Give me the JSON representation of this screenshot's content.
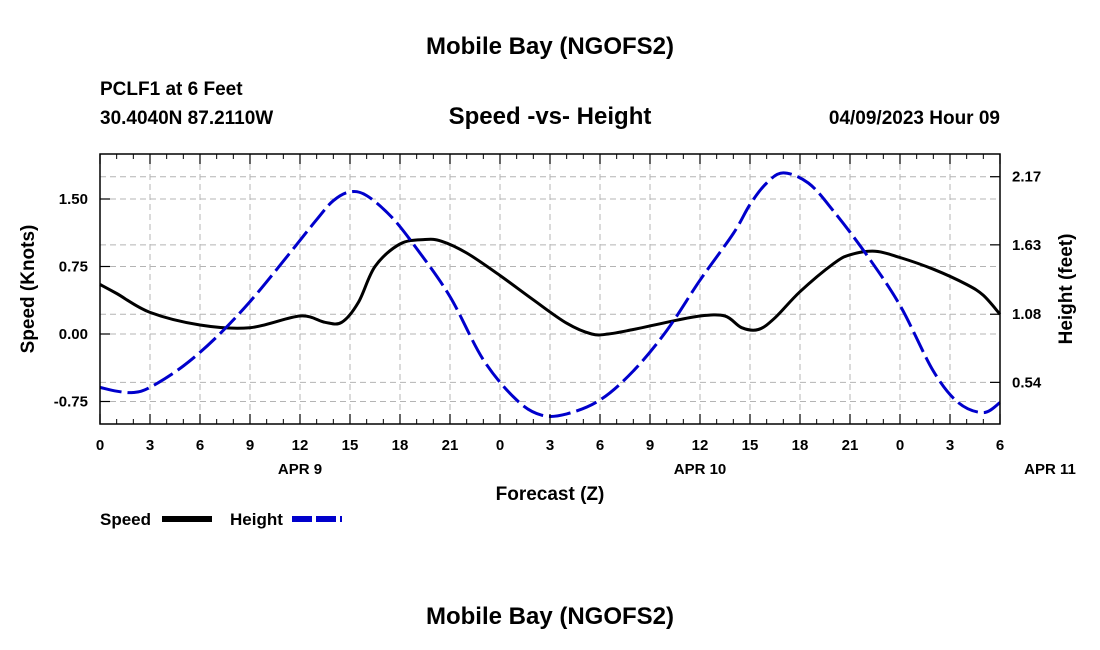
{
  "header": {
    "title": "Mobile Bay (NGOFS2)",
    "station": "PCLF1 at 6 Feet",
    "coords": "30.4040N  87.2110W",
    "subtitle": "Speed -vs- Height",
    "datetime": "04/09/2023 Hour 09"
  },
  "footer": {
    "title": "Mobile Bay (NGOFS2)"
  },
  "legend": {
    "speed": "Speed",
    "height": "Height"
  },
  "colors": {
    "speed": "#000000",
    "height": "#0000cc",
    "grid": "#b4b4b4"
  },
  "chart_data": {
    "type": "line",
    "title": "Speed -vs- Height",
    "xlabel": "Forecast (Z)",
    "ylabel": "Speed (Knots)",
    "y2label": "Height (feet)",
    "x_ticks": [
      "0",
      "3",
      "6",
      "9",
      "12",
      "15",
      "18",
      "21",
      "0",
      "3",
      "6",
      "9",
      "12",
      "15",
      "18",
      "21",
      "0",
      "3",
      "6"
    ],
    "x_minor_count": 55,
    "day_labels": [
      {
        "label": "APR 9",
        "hour": 12
      },
      {
        "label": "APR 10",
        "hour": 36
      },
      {
        "label": "APR 11",
        "hour": 57
      }
    ],
    "xlim": [
      0,
      54
    ],
    "ylim": [
      -1.0,
      2.0
    ],
    "y_ticks": [
      -0.75,
      0.0,
      0.75,
      1.5
    ],
    "y_tick_labels": [
      "-0.75",
      "0.00",
      "0.75",
      "1.50"
    ],
    "y2lim": [
      0.21,
      2.35
    ],
    "y2_ticks": [
      0.54,
      1.08,
      1.63,
      2.17
    ],
    "y2_tick_labels": [
      "0.54",
      "1.08",
      "1.63",
      "2.17"
    ],
    "grid": true,
    "legend_position": "bottom-left",
    "series": [
      {
        "name": "Speed",
        "axis": "left",
        "style": "solid",
        "x": [
          0,
          1,
          3,
          6,
          9,
          12,
          13.5,
          14.5,
          15.5,
          16.5,
          18,
          19.5,
          20.5,
          22,
          24,
          26,
          28,
          29.5,
          30.5,
          32,
          34,
          36,
          37.5,
          38.5,
          39.5,
          40.5,
          42,
          44,
          45,
          46.5,
          48,
          50,
          52,
          53,
          54
        ],
        "y": [
          0.55,
          0.45,
          0.24,
          0.1,
          0.07,
          0.2,
          0.13,
          0.13,
          0.35,
          0.75,
          1.0,
          1.05,
          1.03,
          0.9,
          0.65,
          0.38,
          0.12,
          0.0,
          0.0,
          0.05,
          0.13,
          0.2,
          0.2,
          0.07,
          0.05,
          0.18,
          0.47,
          0.78,
          0.88,
          0.92,
          0.85,
          0.72,
          0.55,
          0.43,
          0.22
        ]
      },
      {
        "name": "Height",
        "axis": "right",
        "style": "dashed",
        "x": [
          0,
          1,
          2,
          3,
          5,
          7,
          9,
          11,
          13,
          14,
          15,
          16,
          17.5,
          19,
          21,
          23,
          25,
          26.5,
          28,
          30,
          32,
          34,
          36,
          38,
          39,
          40,
          41,
          42.5,
          44,
          46,
          48,
          50,
          51.5,
          53,
          54
        ],
        "y": [
          0.5,
          0.47,
          0.46,
          0.5,
          0.67,
          0.9,
          1.18,
          1.5,
          1.83,
          1.98,
          2.05,
          2.02,
          1.85,
          1.6,
          1.22,
          0.72,
          0.4,
          0.28,
          0.29,
          0.4,
          0.63,
          0.95,
          1.35,
          1.72,
          1.95,
          2.12,
          2.2,
          2.12,
          1.9,
          1.55,
          1.15,
          0.63,
          0.38,
          0.3,
          0.38
        ]
      }
    ]
  }
}
